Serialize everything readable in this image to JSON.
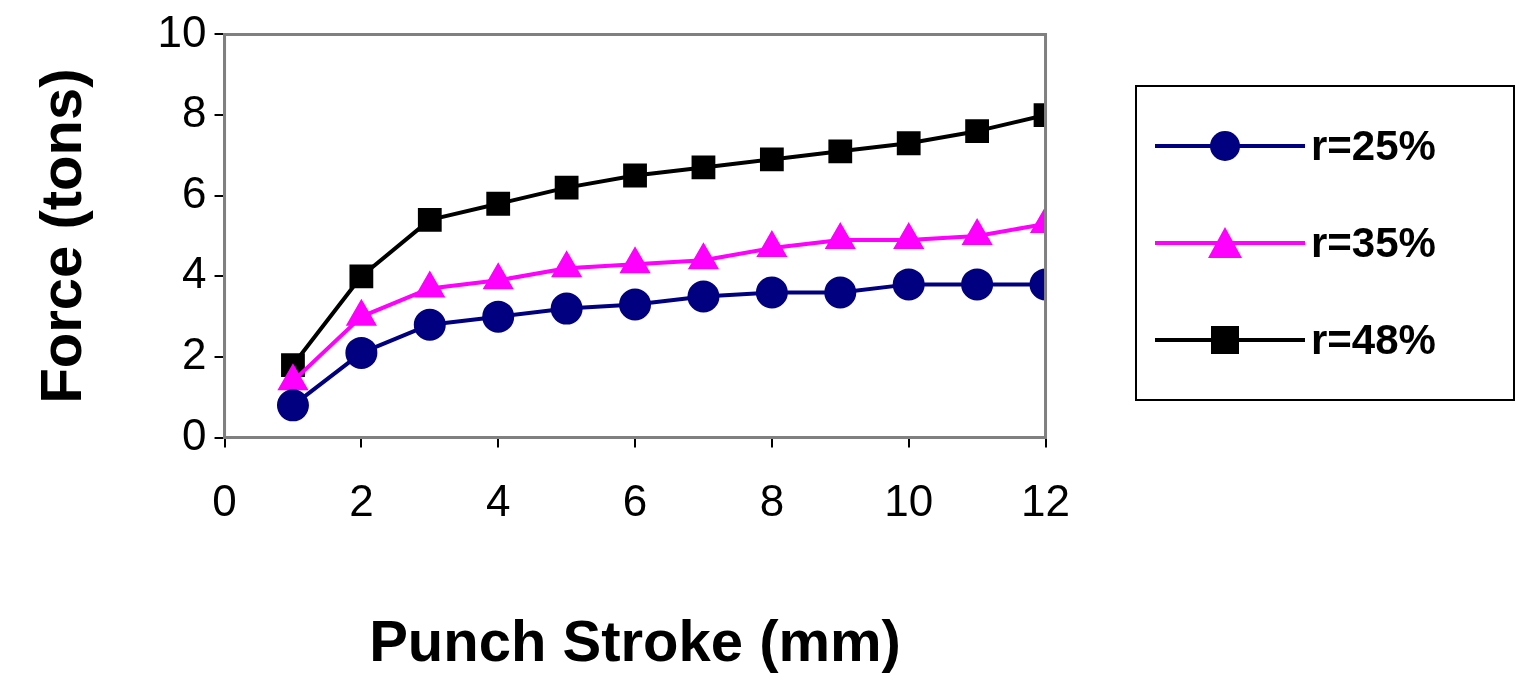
{
  "chart_data": {
    "type": "line",
    "xlabel": "Punch Stroke (mm)",
    "ylabel": "Force (tons)",
    "x": [
      1,
      2,
      3,
      4,
      5,
      6,
      7,
      8,
      9,
      10,
      11,
      12
    ],
    "xlim": [
      0,
      12
    ],
    "xticks": [
      0,
      2,
      4,
      6,
      8,
      10,
      12
    ],
    "ylim": [
      0,
      10
    ],
    "yticks": [
      0,
      2,
      4,
      6,
      8,
      10
    ],
    "grid": false,
    "legend": "right",
    "line_style": "solid",
    "series": [
      {
        "name": "r=25%",
        "color": "#000080",
        "marker": "circle",
        "values": [
          0.8,
          2.1,
          2.8,
          3.0,
          3.2,
          3.3,
          3.5,
          3.6,
          3.6,
          3.8,
          3.8,
          3.8
        ]
      },
      {
        "name": "r=35%",
        "color": "#ff00ff",
        "marker": "triangle",
        "values": [
          1.4,
          3.0,
          3.7,
          3.9,
          4.2,
          4.3,
          4.4,
          4.7,
          4.9,
          4.9,
          5.0,
          5.3
        ]
      },
      {
        "name": "r=48%",
        "color": "#000000",
        "marker": "square",
        "values": [
          1.8,
          4.0,
          5.4,
          5.8,
          6.2,
          6.5,
          6.7,
          6.9,
          7.1,
          7.3,
          7.6,
          8.0
        ]
      }
    ]
  }
}
